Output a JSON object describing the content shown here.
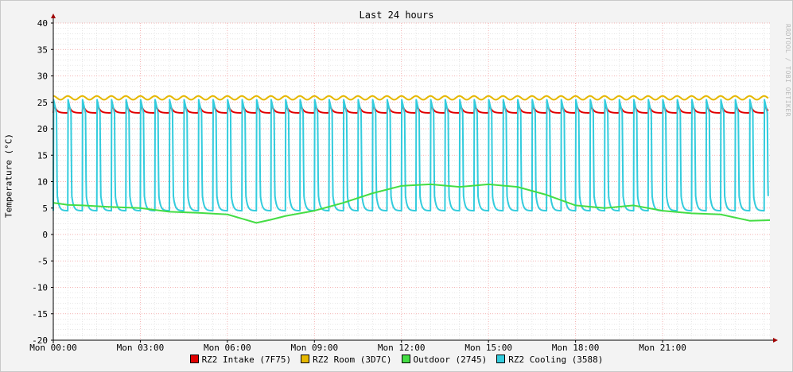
{
  "chart_data": {
    "type": "line",
    "title": "Last 24 hours",
    "ylabel": "Temperature (°C)",
    "watermark": "RRDTOOL / TOBI OETIKER",
    "ylim": [
      -20,
      40
    ],
    "yticks": [
      40,
      35,
      30,
      25,
      20,
      15,
      10,
      5,
      0,
      -5,
      -10,
      -15,
      -20
    ],
    "xlim_hours": [
      0,
      24.7
    ],
    "xticks": [
      {
        "hour": 0,
        "label": "Mon 00:00"
      },
      {
        "hour": 3,
        "label": "Mon 03:00"
      },
      {
        "hour": 6,
        "label": "Mon 06:00"
      },
      {
        "hour": 9,
        "label": "Mon 09:00"
      },
      {
        "hour": 12,
        "label": "Mon 12:00"
      },
      {
        "hour": 15,
        "label": "Mon 15:00"
      },
      {
        "hour": 18,
        "label": "Mon 18:00"
      },
      {
        "hour": 21,
        "label": "Mon 21:00"
      }
    ],
    "grid": true,
    "legend_position": "bottom",
    "series": [
      {
        "name": "RZ2 Intake (7F75)",
        "color": "#e00000",
        "baseline": 23.0,
        "peak": 24.6,
        "cycle_hours": 0.5
      },
      {
        "name": "RZ2 Room (3D7C)",
        "color": "#e6b800",
        "baseline": 25.5,
        "peak": 26.2,
        "cycle_hours": 0.5
      },
      {
        "name": "Outdoor (2745)",
        "color": "#44dd44",
        "hours": [
          0,
          0.5,
          1,
          2,
          3,
          4,
          5,
          6,
          6.5,
          7,
          7.5,
          8,
          9,
          10,
          11,
          11.5,
          12,
          13,
          14,
          15,
          16,
          17,
          18,
          19,
          20,
          21,
          22,
          23,
          24,
          24.7
        ],
        "values": [
          6,
          5.6,
          5.5,
          5.2,
          5.0,
          4.3,
          4.1,
          3.8,
          3.0,
          2.2,
          2.8,
          3.5,
          4.5,
          6.0,
          7.8,
          8.5,
          9.2,
          9.5,
          9.0,
          9.5,
          9.0,
          7.5,
          5.5,
          5.0,
          5.5,
          4.5,
          4.0,
          3.8,
          2.6,
          2.7
        ]
      },
      {
        "name": "RZ2 Cooling (3588)",
        "color": "#33ccdd",
        "baseline": 4.5,
        "peak": 25.5,
        "cycle_hours": 0.5
      }
    ]
  }
}
